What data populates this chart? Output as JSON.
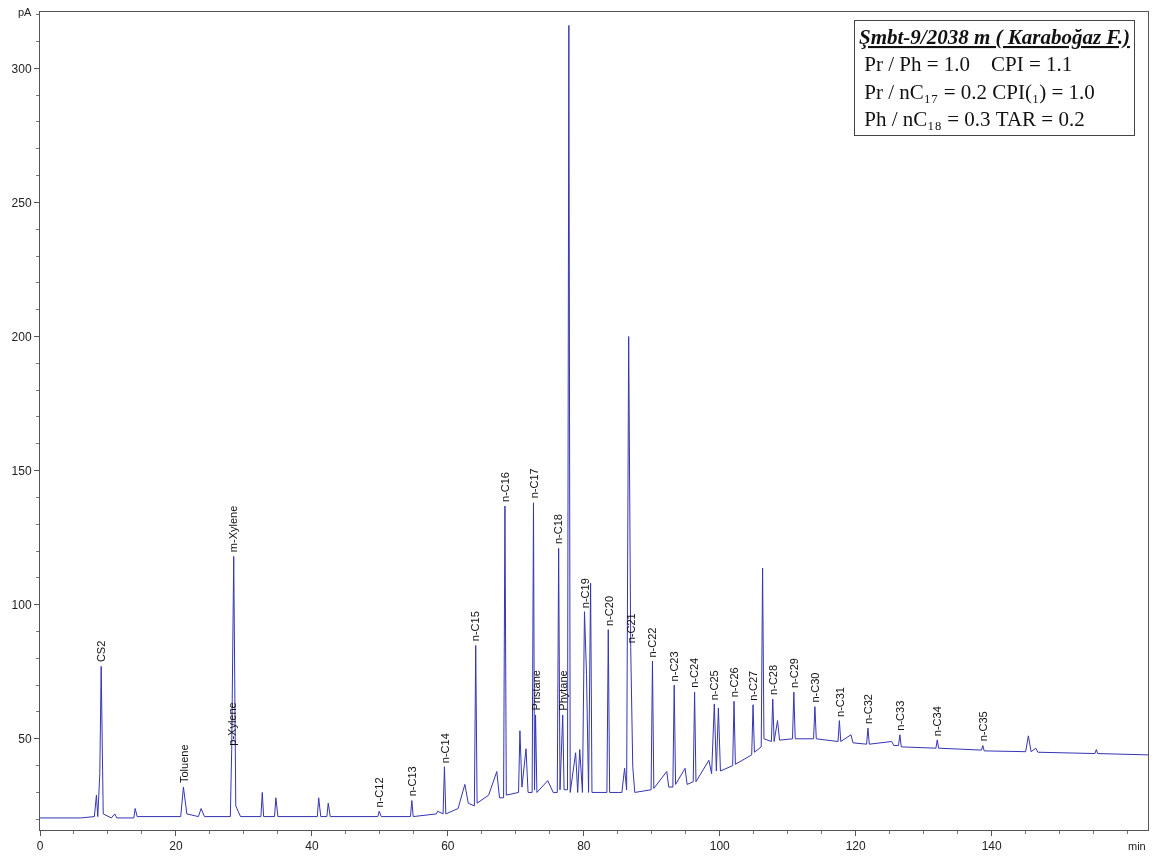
{
  "chart_data": {
    "type": "line",
    "title": "Şmbt-9/2038 m ( Karaboğaz F.)",
    "xlabel": "min",
    "ylabel": "pA",
    "xlim": [
      0,
      163
    ],
    "ylim": [
      16,
      321
    ],
    "xticks": [
      0,
      20,
      40,
      60,
      80,
      100,
      120,
      140
    ],
    "yticks": [
      50,
      100,
      150,
      200,
      250,
      300
    ],
    "x": [
      0,
      6,
      8.0,
      8.3,
      8.5,
      8.8,
      9.0,
      9.3,
      10.5,
      11,
      11.3,
      13.8,
      14,
      14.3,
      20.7,
      21.1,
      21.6,
      23.3,
      23.7,
      24.2,
      28.0,
      28.2,
      28.5,
      28.8,
      29.5,
      32.5,
      32.7,
      32.9,
      34.5,
      34.7,
      35,
      40.8,
      41,
      41.3,
      42.2,
      42.4,
      42.7,
      49.7,
      49.9,
      50.2,
      54.5,
      54.7,
      54.9,
      58.3,
      58.5,
      59.3,
      59.5,
      59.7,
      61.5,
      62.5,
      63,
      63.9,
      64.1,
      64.3,
      66,
      67.2,
      67.6,
      68.2,
      68.4,
      68.6,
      70.4,
      70.6,
      70.9,
      71.5,
      71.8,
      72.4,
      72.6,
      72.75,
      72.9,
      73.1,
      74.7,
      75.5,
      76.1,
      76.3,
      76.5,
      76.9,
      77.1,
      77.6,
      77.8,
      78.0,
      78.8,
      79.1,
      79.4,
      79.8,
      80.1,
      80.4,
      80.7,
      81.0,
      81.2,
      83.4,
      83.6,
      83.8,
      85.6,
      86.0,
      86.3,
      86.6,
      86.9,
      87.2,
      87.5,
      89.9,
      90.1,
      90.3,
      92.2,
      92.5,
      93.1,
      93.3,
      93.5,
      94.9,
      95.2,
      96.1,
      96.3,
      96.5,
      98.4,
      98.8,
      99.2,
      99.5,
      99.8,
      100.1,
      101.9,
      102.1,
      102.3,
      104.7,
      104.9,
      105.1,
      106.1,
      106.3,
      106.5,
      107.6,
      107.8,
      108.0,
      108.5,
      108.8,
      110.7,
      110.9,
      111.1,
      113.8,
      114.0,
      114.2,
      117.4,
      117.6,
      117.8,
      119.3,
      119.6,
      121.6,
      121.8,
      122,
      125.3,
      125.6,
      126.3,
      126.5,
      126.7,
      131.8,
      132.0,
      132.2,
      138.5,
      138.7,
      138.9,
      145,
      145.4,
      145.8,
      146.5,
      146.8,
      155.2,
      155.4,
      155.6,
      163
    ],
    "series": [
      {
        "color": "#3535b5",
        "values": [
          20.5,
          20.5,
          21,
          29,
          21,
          37,
          77,
          22,
          20.5,
          22,
          20.5,
          20.5,
          24,
          21,
          21,
          32,
          22,
          21,
          24,
          21,
          21,
          46,
          118,
          25,
          21,
          21,
          30,
          21,
          21,
          28,
          21,
          21,
          28,
          21,
          21,
          26,
          21,
          21,
          23,
          21,
          21,
          27,
          21,
          22,
          23,
          22,
          39.6,
          22,
          24,
          33,
          26,
          25,
          84.8,
          26,
          29,
          37.8,
          28,
          28,
          136.8,
          29,
          30,
          53,
          32,
          46.3,
          30,
          30,
          138,
          31,
          58.9,
          30,
          34.4,
          30,
          30,
          121,
          31,
          58.9,
          31,
          31,
          316,
          30,
          44.8,
          30,
          46,
          30,
          97.4,
          74,
          30,
          108,
          30,
          30,
          90.7,
          30,
          30,
          39,
          31,
          200,
          84,
          39.6,
          30,
          31,
          79,
          31.5,
          37.8,
          32,
          32,
          70,
          33,
          39,
          33,
          34,
          67.4,
          34,
          42,
          37,
          63,
          38,
          61.5,
          38,
          40,
          64,
          40.5,
          44,
          62.7,
          45,
          47,
          113.7,
          50,
          49,
          64.8,
          49,
          56.8,
          49.5,
          50,
          67.4,
          50,
          50,
          62,
          50,
          49,
          56.8,
          49,
          51.5,
          48.5,
          48,
          54,
          48,
          49,
          47.5,
          47.5,
          51.5,
          47,
          46.5,
          49.6,
          46.5,
          45.8,
          47.5,
          45.5,
          45.2,
          51.1,
          45.2,
          46.5,
          45,
          44.5,
          46,
          44.5,
          44
        ]
      }
    ],
    "annotations": [
      "Pr / Ph = 1.0    CPI = 1.1",
      "Pr / nC₁₇ = 0.2 CPI(₁) = 1.0",
      "Ph / nC₁₈ = 0.3 TAR = 0.2",
      {
        "text": "CS2",
        "x": 9.0,
        "y": 77
      },
      {
        "text": "Toluene",
        "x": 21.1,
        "y": 32
      },
      {
        "text": "m-Xylene",
        "x": 28.5,
        "y": 118
      },
      {
        "text": "p-Xylene",
        "x": 28.2,
        "y": 46
      },
      {
        "text": "n-C12",
        "x": 49.9,
        "y": 23
      },
      {
        "text": "n-C13",
        "x": 54.7,
        "y": 27
      },
      {
        "text": "n-C14",
        "x": 59.5,
        "y": 39.6
      },
      {
        "text": "n-C15",
        "x": 64.1,
        "y": 84.8
      },
      {
        "text": "n-C16",
        "x": 68.4,
        "y": 136.8
      },
      {
        "text": "n-C17",
        "x": 72.6,
        "y": 138
      },
      {
        "text": "Pristane",
        "x": 72.9,
        "y": 58.9
      },
      {
        "text": "n-C18",
        "x": 76.3,
        "y": 121
      },
      {
        "text": "Phytane",
        "x": 76.9,
        "y": 58.9
      },
      {
        "text": "n-C19",
        "x": 80.1,
        "y": 97.4
      },
      {
        "text": "n-C20",
        "x": 83.6,
        "y": 90.7
      },
      {
        "text": "n-C21",
        "x": 86.9,
        "y": 84
      },
      {
        "text": "n-C22",
        "x": 90.1,
        "y": 79
      },
      {
        "text": "n-C23",
        "x": 93.3,
        "y": 70
      },
      {
        "text": "n-C24",
        "x": 96.3,
        "y": 67.4
      },
      {
        "text": "n-C25",
        "x": 99.2,
        "y": 63
      },
      {
        "text": "n-C26",
        "x": 102.1,
        "y": 64
      },
      {
        "text": "n-C27",
        "x": 104.9,
        "y": 62.7
      },
      {
        "text": "n-C28",
        "x": 107.8,
        "y": 64.8
      },
      {
        "text": "n-C29",
        "x": 110.9,
        "y": 67.4
      },
      {
        "text": "n-C30",
        "x": 114.0,
        "y": 62
      },
      {
        "text": "n-C31",
        "x": 117.6,
        "y": 56.8
      },
      {
        "text": "n-C32",
        "x": 121.8,
        "y": 54
      },
      {
        "text": "n-C33",
        "x": 126.5,
        "y": 51.5
      },
      {
        "text": "n-C34",
        "x": 132.0,
        "y": 49.6
      },
      {
        "text": "n-C35",
        "x": 138.7,
        "y": 47.5
      }
    ]
  }
}
